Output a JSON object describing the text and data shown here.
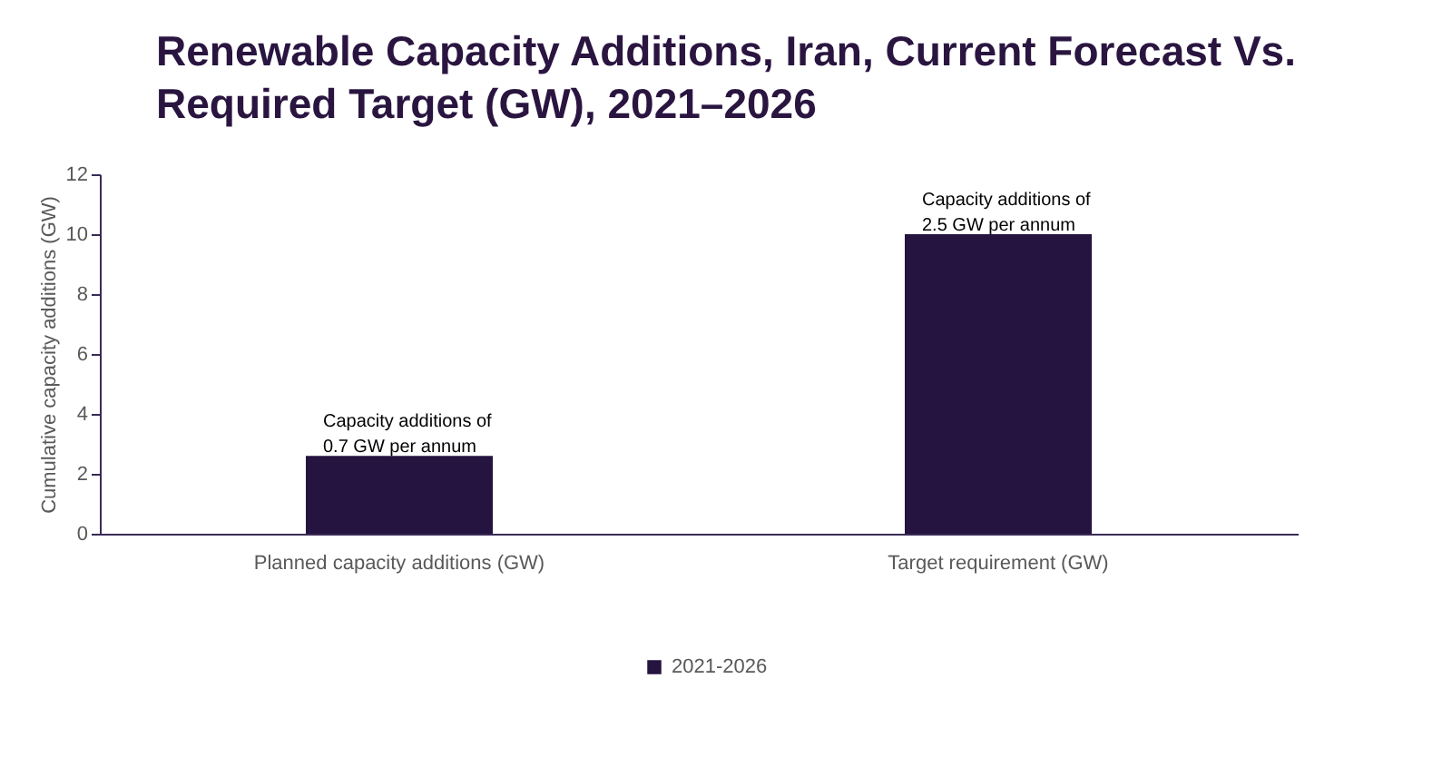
{
  "chart_data": {
    "type": "bar",
    "title": "Renewable Capacity Additions, Iran, Current Forecast Vs. Required Target (GW), 2021–2026",
    "ylabel": "Cumulative capacity additions (GW)",
    "categories": [
      "Planned capacity additions (GW)",
      "Target requirement (GW)"
    ],
    "series": [
      {
        "name": "2021-2026",
        "color": "#24143f",
        "values": [
          2.6,
          10
        ]
      }
    ],
    "ylim": [
      0,
      12
    ],
    "yticks": [
      0,
      2,
      4,
      6,
      8,
      10,
      12
    ],
    "grid": false,
    "legend": "bottom",
    "annotations": [
      {
        "text": "Capacity additions of\n0.7 GW per annum",
        "x": "Planned capacity additions (GW)",
        "y": 2.6
      },
      {
        "text": "Capacity additions of\n2.5 GW per annum",
        "x": "Target requirement (GW)",
        "y": 10
      }
    ]
  }
}
